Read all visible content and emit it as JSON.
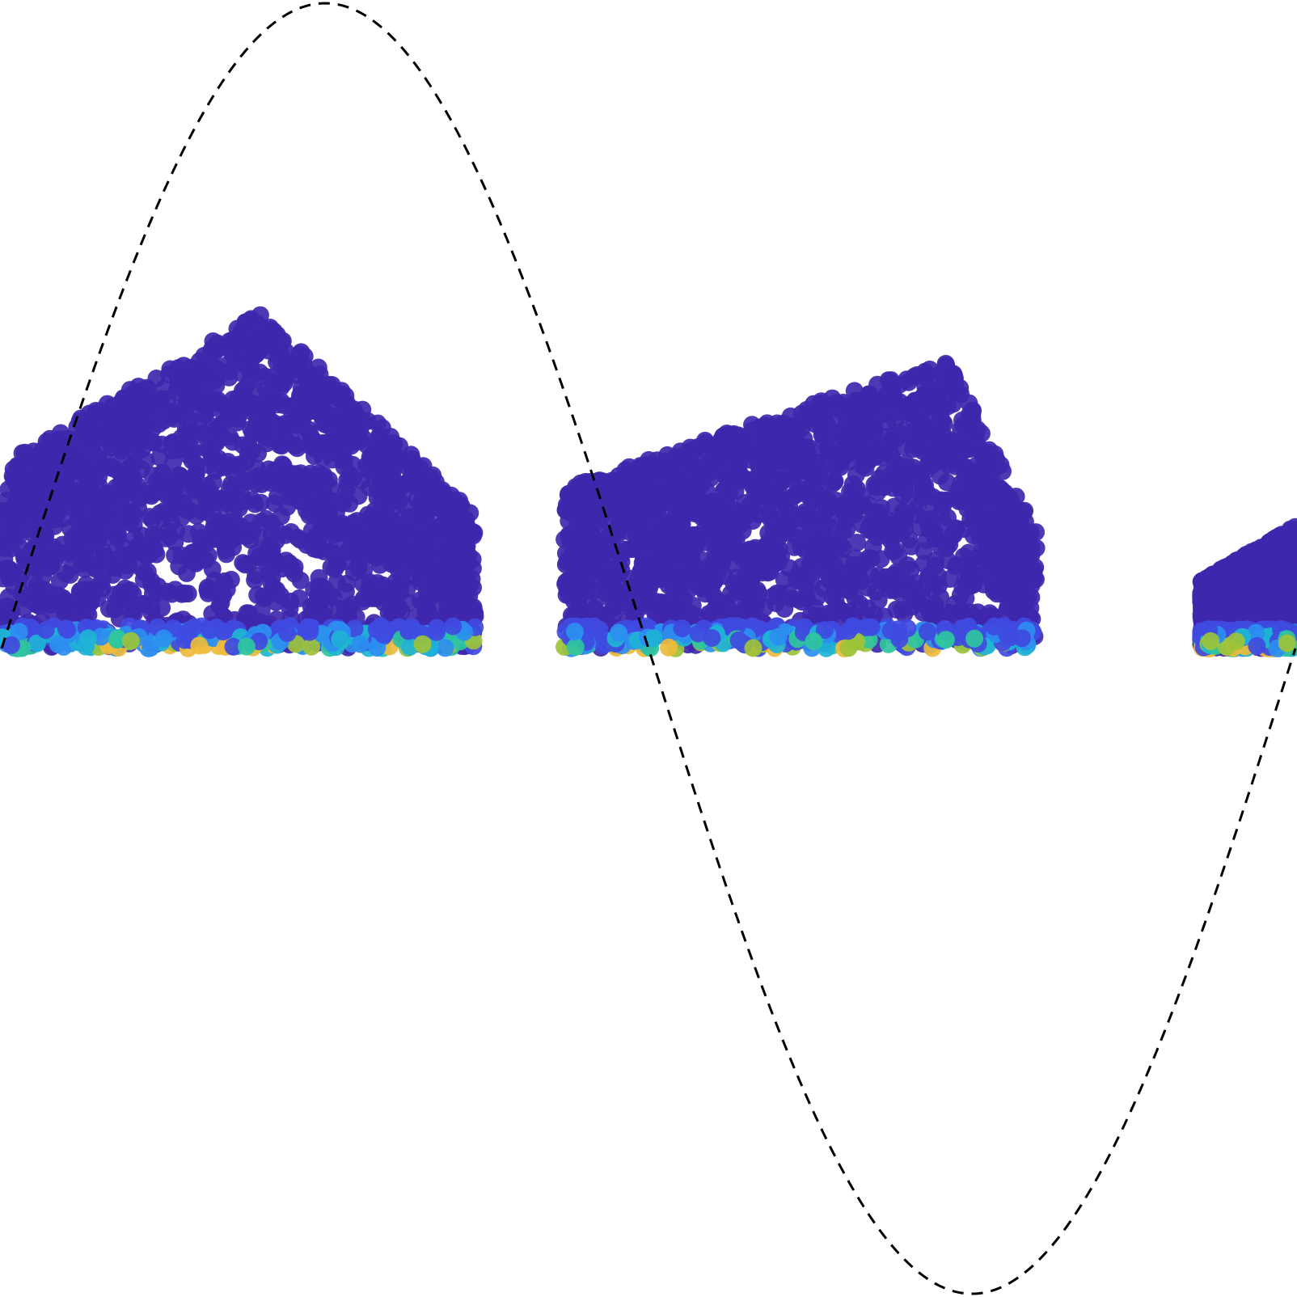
{
  "chart_data": {
    "type": "scatter",
    "title": "",
    "xlabel": "",
    "ylabel": "",
    "axes_visible": false,
    "grid": false,
    "legend": "none",
    "xlim": [
      0,
      1
    ],
    "ylim": [
      -1,
      1
    ],
    "reference_curve": {
      "name": "",
      "function": "sine",
      "amplitude": 1,
      "period": 1,
      "phase_peak_x": 0.25,
      "style": "dashed",
      "color": "#000000"
    },
    "point_color_scale": {
      "type": "density",
      "low_color": "#3f27ad",
      "mid_colors": [
        "#3f4ae0",
        "#2c8ef0",
        "#1eb3d6",
        "#2fc59e",
        "#9dc339"
      ],
      "high_color": "#eebb3c"
    },
    "clusters": [
      {
        "x_range": [
          0.0,
          0.366
        ],
        "y_range": [
          0.0,
          0.52
        ],
        "peak_x": 0.2,
        "low_density_y_max": 0.035
      },
      {
        "x_range": [
          0.435,
          0.8
        ],
        "y_range": [
          0.0,
          0.45
        ],
        "peak_x": 0.73,
        "low_density_y_max": 0.035
      },
      {
        "x_range": [
          0.927,
          1.0
        ],
        "y_range": [
          0.0,
          0.19
        ],
        "peak_x": 1.0,
        "low_density_y_max": 0.03
      }
    ]
  }
}
